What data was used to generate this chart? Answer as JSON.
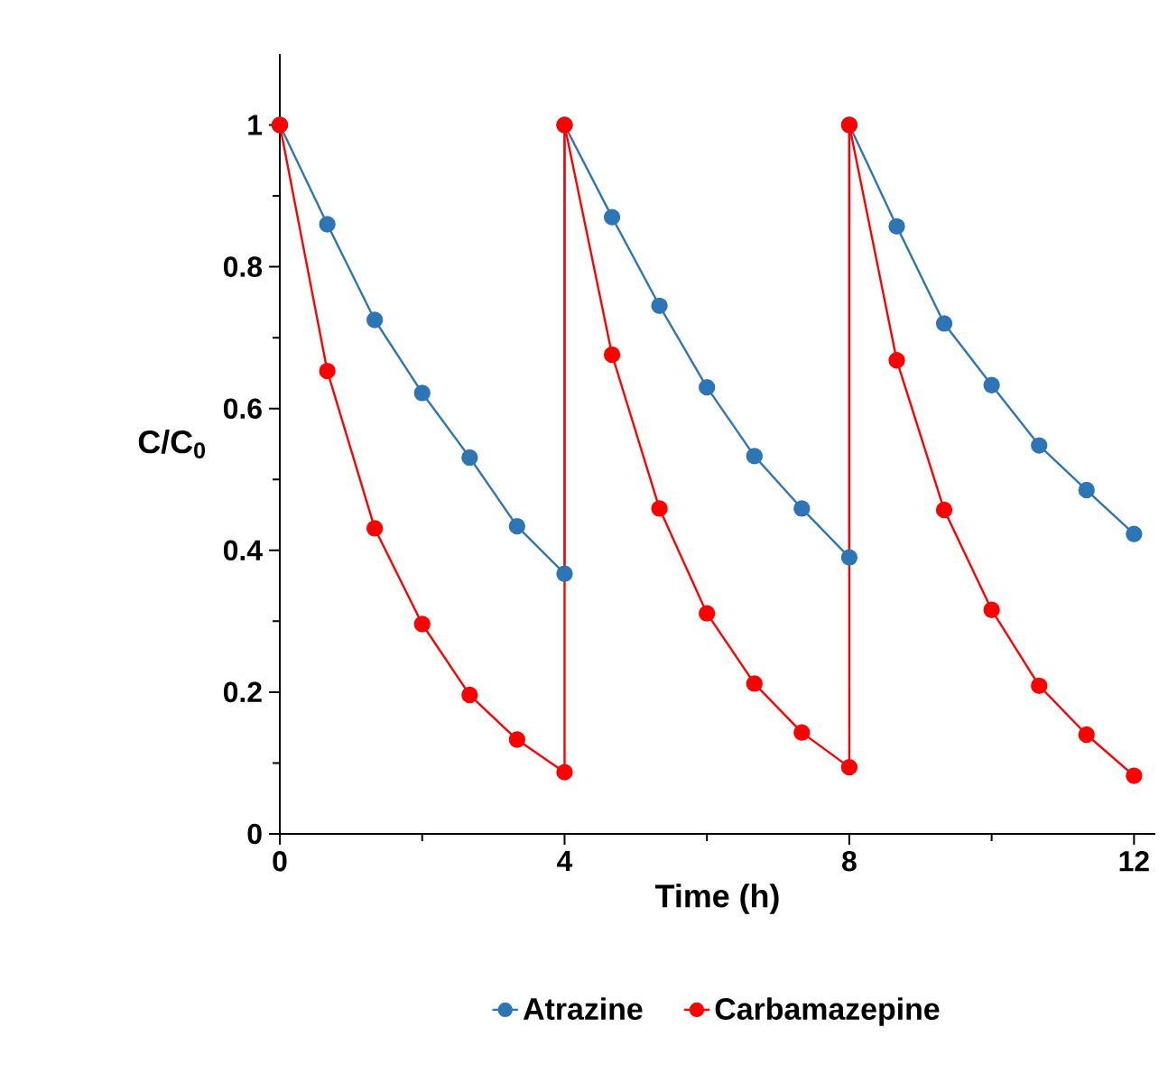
{
  "chart_data": {
    "type": "line",
    "xlabel": "Time (h)",
    "ylabel": "C/C$_{0}$",
    "xlim": [
      0,
      12.3
    ],
    "xticks": [
      0,
      4,
      8,
      12
    ],
    "ylim": [
      0,
      1.1
    ],
    "yticks": [
      0,
      0.2,
      0.4,
      0.6,
      0.8,
      1
    ],
    "marker": "circle",
    "legend": "bottom",
    "grid": false,
    "series": [
      {
        "name": "Atrazine",
        "color": "#2e75b6",
        "x": [
          0,
          0.667,
          1.333,
          2,
          2.667,
          3.333,
          4,
          4,
          4.667,
          5.333,
          6,
          6.667,
          7.333,
          8,
          8,
          8.667,
          9.333,
          10,
          10.667,
          11.333,
          12
        ],
        "values": [
          1,
          0.86,
          0.725,
          0.622,
          0.531,
          0.434,
          0.367,
          1,
          0.87,
          0.745,
          0.63,
          0.533,
          0.459,
          0.39,
          1,
          0.857,
          0.72,
          0.633,
          0.548,
          0.485,
          0.423
        ]
      },
      {
        "name": "Carbamazepine",
        "color": "#ff0000",
        "x": [
          0,
          0.667,
          1.333,
          2,
          2.667,
          3.333,
          4,
          4,
          4.667,
          5.333,
          6,
          6.667,
          7.333,
          8,
          8,
          8.667,
          9.333,
          10,
          10.667,
          11.333,
          12
        ],
        "values": [
          1,
          0.653,
          0.431,
          0.296,
          0.196,
          0.133,
          0.087,
          1,
          0.676,
          0.459,
          0.311,
          0.212,
          0.143,
          0.094,
          1,
          0.668,
          0.457,
          0.316,
          0.209,
          0.14,
          0.082
        ]
      }
    ]
  }
}
